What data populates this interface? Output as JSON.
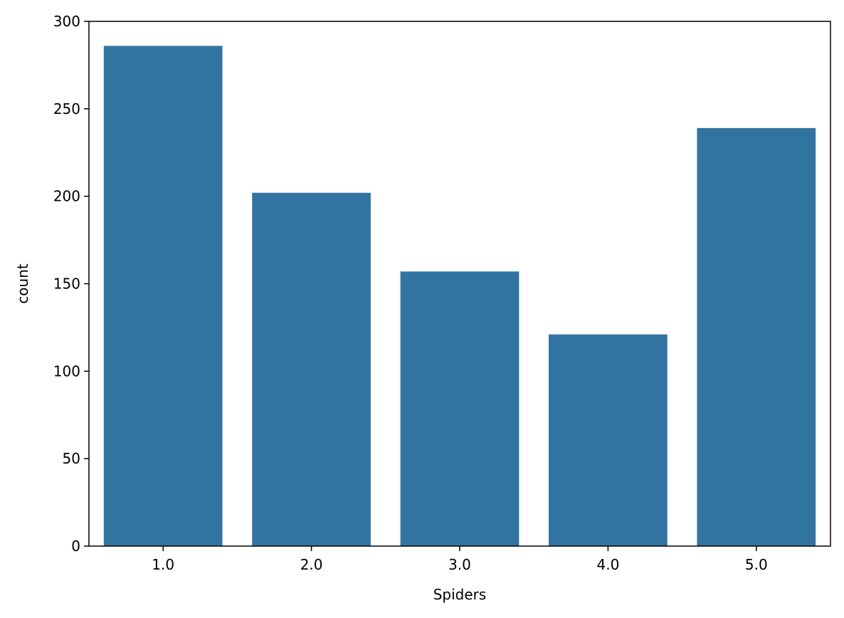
{
  "chart_data": {
    "type": "bar",
    "title": "",
    "xlabel": "Spiders",
    "ylabel": "count",
    "categories": [
      "1.0",
      "2.0",
      "3.0",
      "4.0",
      "5.0"
    ],
    "values": [
      286,
      202,
      157,
      121,
      239
    ],
    "ylim": [
      0,
      300
    ],
    "yticks": [
      "0",
      "50",
      "100",
      "150",
      "200",
      "250",
      "300"
    ],
    "bar_color": "#3274a1",
    "grid": false,
    "legend": "none"
  }
}
